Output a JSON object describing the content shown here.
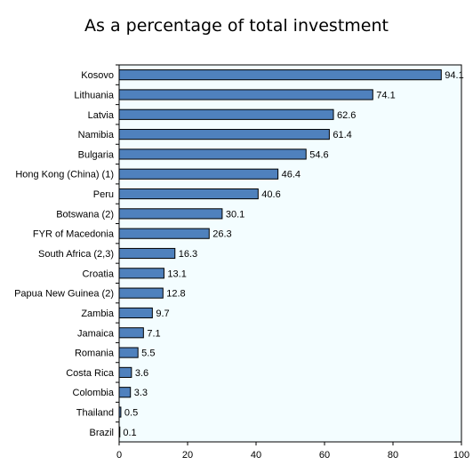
{
  "chart_data": {
    "type": "bar",
    "orientation": "horizontal",
    "title": "As a percentage of total investment",
    "categories": [
      "Kosovo",
      "Lithuania",
      "Latvia",
      "Namibia",
      "Bulgaria",
      "Hong Kong (China) (1)",
      "Peru",
      "Botswana (2)",
      "FYR of Macedonia",
      "South Africa (2,3)",
      "Croatia",
      "Papua New Guinea (2)",
      "Zambia",
      "Jamaica",
      "Romania",
      "Costa Rica",
      "Colombia",
      "Thailand",
      "Brazil"
    ],
    "values": [
      94.1,
      74.1,
      62.6,
      61.4,
      54.6,
      46.4,
      40.6,
      30.1,
      26.3,
      16.3,
      13.1,
      12.8,
      9.7,
      7.1,
      5.5,
      3.6,
      3.3,
      0.5,
      0.1
    ],
    "value_labels": [
      "94.1",
      "74.1",
      "62.6",
      "61.4",
      "54.6",
      "46.4",
      "40.6",
      "30.1",
      "26.3",
      "16.3",
      "13.1",
      "12.8",
      "9.7",
      "7.1",
      "5.5",
      "3.6",
      "3.3",
      "0.5",
      "0.1"
    ],
    "xlim": [
      0,
      100
    ],
    "x_ticks": [
      0,
      20,
      40,
      60,
      80,
      100
    ],
    "grid": false,
    "colors": {
      "bar": "#4f81bd",
      "bar_edge": "#000000",
      "plot_bg": "#f3fdff"
    }
  }
}
